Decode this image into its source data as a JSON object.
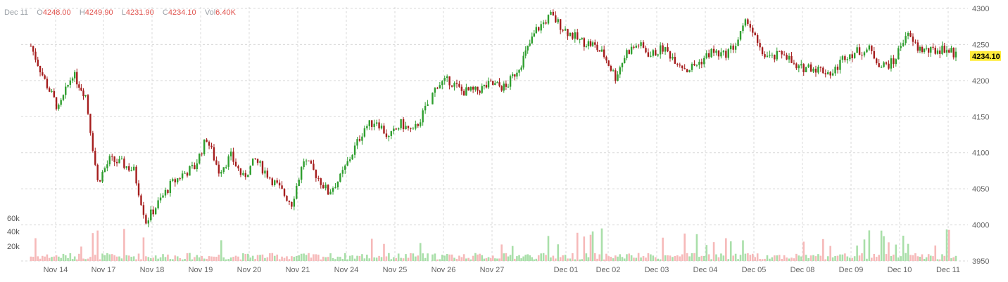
{
  "header": {
    "date": "Dec 11",
    "o_label": "O",
    "o_value": "4248.00",
    "h_label": "H",
    "h_value": "4249.90",
    "l_label": "L",
    "l_value": "4231.90",
    "c_label": "C",
    "c_value": "4234.10",
    "vol_label": "Vol",
    "vol_value": "6.40K"
  },
  "colors": {
    "up": "#2e9e2e",
    "down": "#a51d1d",
    "vol_up": "#a9dfa9",
    "vol_down": "#f6b9b9",
    "last_price_bg": "#ffeb3b"
  },
  "chart_data": {
    "type": "candlestick",
    "y_ticks": [
      "4300",
      "4250",
      "4200",
      "4150",
      "4100",
      "4050",
      "4000",
      "3950"
    ],
    "ylim": [
      3950,
      4300
    ],
    "x_ticks": [
      "Nov 14",
      "Nov 17",
      "Nov 18",
      "Nov 19",
      "Nov 20",
      "Nov 21",
      "Nov 24",
      "Nov 25",
      "Nov 26",
      "Nov 27",
      "Dec 01",
      "Dec 02",
      "Dec 03",
      "Dec 04",
      "Dec 05",
      "Dec 08",
      "Dec 09",
      "Dec 10",
      "Dec 11"
    ],
    "volume_ticks": [
      "60k",
      "40k",
      "20k"
    ],
    "volume_max": 60000,
    "last_price": "4234.10",
    "close_path": [
      {
        "tick": "Nov 14",
        "close": 4248
      },
      {
        "tick": "Nov 14",
        "close": 4200
      },
      {
        "tick": "Nov 14",
        "close": 4160
      },
      {
        "tick": "Nov 14",
        "close": 4210
      },
      {
        "tick": "Nov 17",
        "close": 4180
      },
      {
        "tick": "Nov 17",
        "close": 4060
      },
      {
        "tick": "Nov 17",
        "close": 4090
      },
      {
        "tick": "Nov 17",
        "close": 4085
      },
      {
        "tick": "Nov 18",
        "close": 4075
      },
      {
        "tick": "Nov 18",
        "close": 4005
      },
      {
        "tick": "Nov 18",
        "close": 4030
      },
      {
        "tick": "Nov 18",
        "close": 4055
      },
      {
        "tick": "Nov 19",
        "close": 4070
      },
      {
        "tick": "Nov 19",
        "close": 4080
      },
      {
        "tick": "Nov 19",
        "close": 4120
      },
      {
        "tick": "Nov 19",
        "close": 4075
      },
      {
        "tick": "Nov 20",
        "close": 4095
      },
      {
        "tick": "Nov 20",
        "close": 4065
      },
      {
        "tick": "Nov 20",
        "close": 4090
      },
      {
        "tick": "Nov 20",
        "close": 4070
      },
      {
        "tick": "Nov 21",
        "close": 4050
      },
      {
        "tick": "Nov 21",
        "close": 4030
      },
      {
        "tick": "Nov 21",
        "close": 4090
      },
      {
        "tick": "Nov 21",
        "close": 4070
      },
      {
        "tick": "Nov 24",
        "close": 4045
      },
      {
        "tick": "Nov 24",
        "close": 4065
      },
      {
        "tick": "Nov 24",
        "close": 4100
      },
      {
        "tick": "Nov 24",
        "close": 4135
      },
      {
        "tick": "Nov 25",
        "close": 4145
      },
      {
        "tick": "Nov 25",
        "close": 4120
      },
      {
        "tick": "Nov 25",
        "close": 4140
      },
      {
        "tick": "Nov 25",
        "close": 4128
      },
      {
        "tick": "Nov 26",
        "close": 4160
      },
      {
        "tick": "Nov 26",
        "close": 4195
      },
      {
        "tick": "Nov 26",
        "close": 4200
      },
      {
        "tick": "Nov 26",
        "close": 4185
      },
      {
        "tick": "Nov 27",
        "close": 4185
      },
      {
        "tick": "Nov 27",
        "close": 4195
      },
      {
        "tick": "Nov 27",
        "close": 4190
      },
      {
        "tick": "Nov 27",
        "close": 4225
      },
      {
        "tick": "Dec 01",
        "close": 4270
      },
      {
        "tick": "Dec 01",
        "close": 4290
      },
      {
        "tick": "Dec 01",
        "close": 4270
      },
      {
        "tick": "Dec 01",
        "close": 4255
      },
      {
        "tick": "Dec 02",
        "close": 4250
      },
      {
        "tick": "Dec 02",
        "close": 4235
      },
      {
        "tick": "Dec 02",
        "close": 4205
      },
      {
        "tick": "Dec 02",
        "close": 4240
      },
      {
        "tick": "Dec 03",
        "close": 4250
      },
      {
        "tick": "Dec 03",
        "close": 4235
      },
      {
        "tick": "Dec 03",
        "close": 4245
      },
      {
        "tick": "Dec 03",
        "close": 4230
      },
      {
        "tick": "Dec 04",
        "close": 4215
      },
      {
        "tick": "Dec 04",
        "close": 4225
      },
      {
        "tick": "Dec 04",
        "close": 4240
      },
      {
        "tick": "Dec 04",
        "close": 4235
      },
      {
        "tick": "Dec 05",
        "close": 4250
      },
      {
        "tick": "Dec 05",
        "close": 4285
      },
      {
        "tick": "Dec 05",
        "close": 4240
      },
      {
        "tick": "Dec 05",
        "close": 4230
      },
      {
        "tick": "Dec 08",
        "close": 4240
      },
      {
        "tick": "Dec 08",
        "close": 4215
      },
      {
        "tick": "Dec 08",
        "close": 4220
      },
      {
        "tick": "Dec 08",
        "close": 4215
      },
      {
        "tick": "Dec 09",
        "close": 4210
      },
      {
        "tick": "Dec 09",
        "close": 4235
      },
      {
        "tick": "Dec 09",
        "close": 4240
      },
      {
        "tick": "Dec 09",
        "close": 4243
      },
      {
        "tick": "Dec 10",
        "close": 4220
      },
      {
        "tick": "Dec 10",
        "close": 4225
      },
      {
        "tick": "Dec 10",
        "close": 4265
      },
      {
        "tick": "Dec 10",
        "close": 4245
      },
      {
        "tick": "Dec 11",
        "close": 4240
      },
      {
        "tick": "Dec 11",
        "close": 4245
      },
      {
        "tick": "Dec 11",
        "close": 4234
      }
    ]
  }
}
